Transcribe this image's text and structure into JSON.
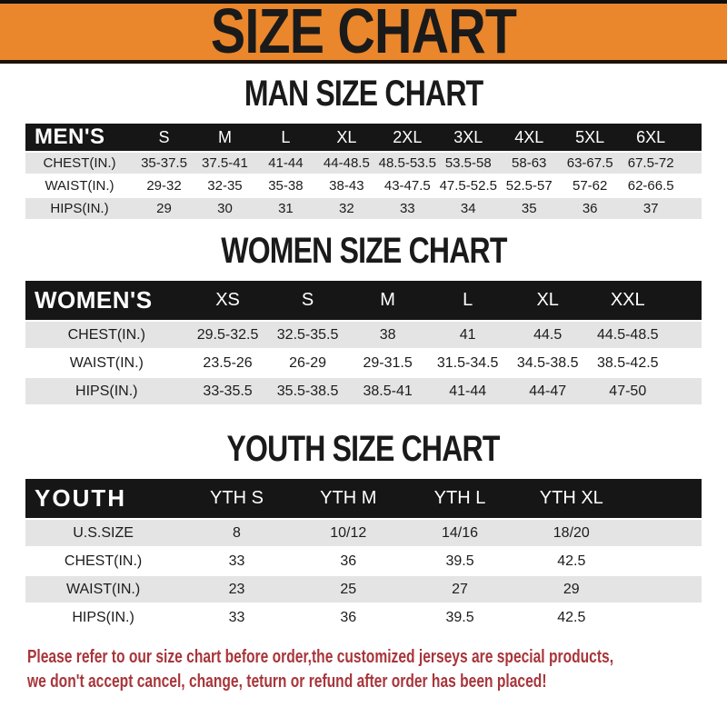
{
  "banner": {
    "title": "SIZE CHART"
  },
  "colors": {
    "banner-bg": "#EA862B",
    "bar-black": "#161616",
    "row-gray": "#E4E4E4",
    "note-red": "#A8353A",
    "title-black": "#1A1A1A"
  },
  "sections": [
    {
      "id": "men",
      "title": "MAN SIZE CHART",
      "header_label": "MEN'S",
      "columns": [
        "S",
        "M",
        "L",
        "XL",
        "2XL",
        "3XL",
        "4XL",
        "5XL",
        "6XL"
      ],
      "rows": [
        {
          "label": "CHEST(IN.)",
          "values": [
            "35-37.5",
            "37.5-41",
            "41-44",
            "44-48.5",
            "48.5-53.5",
            "53.5-58",
            "58-63",
            "63-67.5",
            "67.5-72"
          ]
        },
        {
          "label": "WAIST(IN.)",
          "values": [
            "29-32",
            "32-35",
            "35-38",
            "38-43",
            "43-47.5",
            "47.5-52.5",
            "52.5-57",
            "57-62",
            "62-66.5"
          ]
        },
        {
          "label": "HIPS(IN.)",
          "values": [
            "29",
            "30",
            "31",
            "32",
            "33",
            "34",
            "35",
            "36",
            "37"
          ]
        }
      ]
    },
    {
      "id": "women",
      "title": "WOMEN SIZE CHART",
      "header_label": "WOMEN'S",
      "columns": [
        "XS",
        "S",
        "M",
        "L",
        "XL",
        "XXL"
      ],
      "rows": [
        {
          "label": "CHEST(IN.)",
          "values": [
            "29.5-32.5",
            "32.5-35.5",
            "38",
            "41",
            "44.5",
            "44.5-48.5"
          ]
        },
        {
          "label": "WAIST(IN.)",
          "values": [
            "23.5-26",
            "26-29",
            "29-31.5",
            "31.5-34.5",
            "34.5-38.5",
            "38.5-42.5"
          ]
        },
        {
          "label": "HIPS(IN.)",
          "values": [
            "33-35.5",
            "35.5-38.5",
            "38.5-41",
            "41-44",
            "44-47",
            "47-50"
          ]
        }
      ]
    },
    {
      "id": "youth",
      "title": "YOUTH SIZE CHART",
      "header_label": "YOUTH",
      "columns": [
        "YTH S",
        "YTH M",
        "YTH L",
        "YTH XL"
      ],
      "rows": [
        {
          "label": "U.S.SIZE",
          "values": [
            "8",
            "10/12",
            "14/16",
            "18/20"
          ]
        },
        {
          "label": "CHEST(IN.)",
          "values": [
            "33",
            "36",
            "39.5",
            "42.5"
          ]
        },
        {
          "label": "WAIST(IN.)",
          "values": [
            "23",
            "25",
            "27",
            "29"
          ]
        },
        {
          "label": "HIPS(IN.)",
          "values": [
            "33",
            "36",
            "39.5",
            "42.5"
          ]
        }
      ]
    }
  ],
  "note": {
    "line1": "Please refer to our size chart before order,the customized jerseys are special products,",
    "line2": "we don't accept cancel, change, teturn or refund after order has been placed!"
  }
}
